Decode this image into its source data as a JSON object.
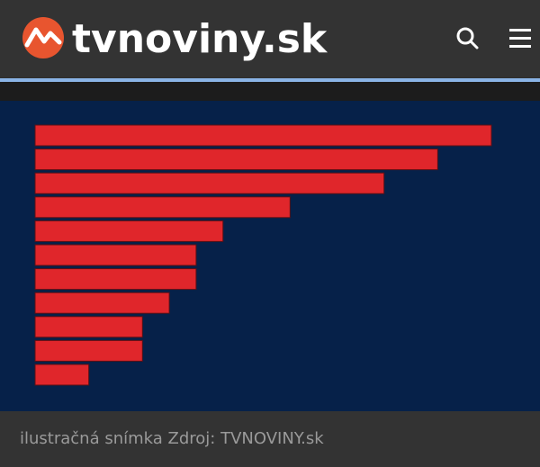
{
  "header": {
    "logo_text": "tvnoviny.sk"
  },
  "chart_data": {
    "type": "bar",
    "orientation": "horizontal",
    "values": [
      17,
      15,
      13,
      9.5,
      7,
      6,
      6,
      5,
      4,
      4,
      2
    ],
    "color": "#e0262b",
    "xlim": [
      0,
      17
    ]
  },
  "caption": "ilustračná snímka Zdroj: TVNOVINY.sk"
}
